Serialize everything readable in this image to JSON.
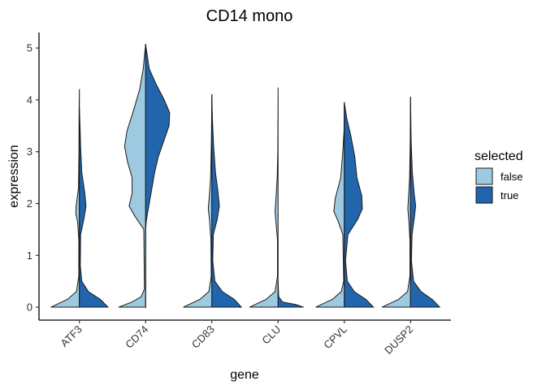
{
  "chart_data": {
    "type": "split-violin",
    "title": "CD14 mono",
    "xlabel": "gene",
    "ylabel": "expression",
    "ylim": [
      -0.25,
      5.3
    ],
    "yticks": [
      0,
      1,
      2,
      3,
      4,
      5
    ],
    "categories": [
      "ATF3",
      "CD74",
      "CD83",
      "CLU",
      "CPVL",
      "DUSP2"
    ],
    "legend": {
      "title": "selected",
      "placement": "right",
      "entries": [
        {
          "label": "false",
          "color": "#9ecae1"
        },
        {
          "label": "true",
          "color": "#2166ac"
        }
      ]
    },
    "series": [
      {
        "name": "false",
        "color": "#9ecae1",
        "side": "left",
        "profiles": [
          [
            [
              0,
              0.95
            ],
            [
              0.15,
              0.4
            ],
            [
              0.3,
              0.1
            ],
            [
              0.6,
              0.02
            ],
            [
              1.3,
              0.02
            ],
            [
              1.65,
              0.06
            ],
            [
              1.8,
              0.12
            ],
            [
              1.95,
              0.11
            ],
            [
              2.3,
              0.03
            ],
            [
              3.0,
              0.015
            ],
            [
              3.8,
              0.01
            ],
            [
              4.2,
              0
            ]
          ],
          [
            [
              0,
              0.9
            ],
            [
              0.1,
              0.45
            ],
            [
              0.2,
              0.15
            ],
            [
              0.35,
              0.04
            ],
            [
              1.5,
              0.06
            ],
            [
              1.75,
              0.35
            ],
            [
              1.95,
              0.55
            ],
            [
              2.2,
              0.45
            ],
            [
              2.5,
              0.45
            ],
            [
              2.8,
              0.6
            ],
            [
              3.1,
              0.7
            ],
            [
              3.4,
              0.62
            ],
            [
              3.8,
              0.4
            ],
            [
              4.2,
              0.2
            ],
            [
              4.6,
              0.08
            ],
            [
              5.07,
              0
            ]
          ],
          [
            [
              0,
              0.95
            ],
            [
              0.15,
              0.4
            ],
            [
              0.3,
              0.1
            ],
            [
              0.6,
              0.02
            ],
            [
              1.3,
              0.03
            ],
            [
              1.7,
              0.08
            ],
            [
              1.9,
              0.12
            ],
            [
              2.1,
              0.09
            ],
            [
              2.5,
              0.04
            ],
            [
              3.2,
              0.015
            ],
            [
              4.1,
              0
            ]
          ],
          [
            [
              0,
              0.95
            ],
            [
              0.15,
              0.4
            ],
            [
              0.3,
              0.1
            ],
            [
              0.6,
              0.02
            ],
            [
              1.3,
              0.02
            ],
            [
              1.7,
              0.08
            ],
            [
              1.85,
              0.1
            ],
            [
              2.1,
              0.07
            ],
            [
              2.5,
              0.03
            ],
            [
              3.0,
              0.01
            ],
            [
              4.23,
              0
            ]
          ],
          [
            [
              0,
              0.95
            ],
            [
              0.15,
              0.4
            ],
            [
              0.3,
              0.1
            ],
            [
              0.5,
              0.02
            ],
            [
              1.4,
              0.05
            ],
            [
              1.65,
              0.2
            ],
            [
              1.85,
              0.35
            ],
            [
              2.1,
              0.3
            ],
            [
              2.5,
              0.12
            ],
            [
              3.0,
              0.05
            ],
            [
              3.4,
              0.01
            ],
            [
              3.95,
              0
            ]
          ],
          [
            [
              0,
              0.95
            ],
            [
              0.15,
              0.4
            ],
            [
              0.3,
              0.1
            ],
            [
              0.6,
              0.02
            ],
            [
              1.3,
              0.02
            ],
            [
              1.7,
              0.06
            ],
            [
              1.9,
              0.09
            ],
            [
              2.1,
              0.07
            ],
            [
              2.5,
              0.03
            ],
            [
              3.2,
              0.01
            ],
            [
              4.05,
              0
            ]
          ]
        ]
      },
      {
        "name": "true",
        "color": "#2166ac",
        "side": "right",
        "profiles": [
          [
            [
              0,
              0.95
            ],
            [
              0.15,
              0.7
            ],
            [
              0.3,
              0.3
            ],
            [
              0.5,
              0.08
            ],
            [
              0.8,
              0.03
            ],
            [
              1.4,
              0.04
            ],
            [
              1.7,
              0.15
            ],
            [
              1.95,
              0.22
            ],
            [
              2.2,
              0.18
            ],
            [
              2.6,
              0.08
            ],
            [
              3.1,
              0.04
            ],
            [
              3.5,
              0.02
            ],
            [
              3.84,
              0
            ]
          ],
          [
            [
              0,
              0
            ],
            [
              1.5,
              0
            ],
            [
              1.65,
              0.02
            ],
            [
              1.8,
              0.06
            ],
            [
              2.2,
              0.18
            ],
            [
              2.6,
              0.3
            ],
            [
              2.9,
              0.42
            ],
            [
              3.2,
              0.6
            ],
            [
              3.5,
              0.78
            ],
            [
              3.75,
              0.8
            ],
            [
              4.0,
              0.62
            ],
            [
              4.3,
              0.35
            ],
            [
              4.6,
              0.12
            ],
            [
              5.07,
              0
            ]
          ],
          [
            [
              0,
              0.98
            ],
            [
              0.15,
              0.75
            ],
            [
              0.3,
              0.35
            ],
            [
              0.5,
              0.1
            ],
            [
              0.9,
              0.03
            ],
            [
              1.4,
              0.05
            ],
            [
              1.7,
              0.18
            ],
            [
              1.95,
              0.25
            ],
            [
              2.25,
              0.2
            ],
            [
              2.6,
              0.12
            ],
            [
              3.1,
              0.06
            ],
            [
              3.6,
              0.02
            ],
            [
              4.1,
              0
            ]
          ],
          [
            [
              0,
              0.85
            ],
            [
              0.05,
              0.6
            ],
            [
              0.1,
              0.15
            ],
            [
              0.2,
              0.02
            ],
            [
              0.5,
              0
            ]
          ],
          [
            [
              0,
              0.97
            ],
            [
              0.15,
              0.72
            ],
            [
              0.3,
              0.33
            ],
            [
              0.5,
              0.1
            ],
            [
              0.9,
              0.04
            ],
            [
              1.4,
              0.12
            ],
            [
              1.7,
              0.45
            ],
            [
              1.9,
              0.6
            ],
            [
              2.15,
              0.58
            ],
            [
              2.5,
              0.42
            ],
            [
              2.9,
              0.35
            ],
            [
              3.3,
              0.22
            ],
            [
              3.65,
              0.08
            ],
            [
              3.95,
              0
            ]
          ],
          [
            [
              0,
              0.97
            ],
            [
              0.15,
              0.72
            ],
            [
              0.3,
              0.35
            ],
            [
              0.5,
              0.1
            ],
            [
              0.9,
              0.03
            ],
            [
              1.4,
              0.05
            ],
            [
              1.7,
              0.12
            ],
            [
              1.95,
              0.17
            ],
            [
              2.2,
              0.12
            ],
            [
              2.6,
              0.06
            ],
            [
              3.2,
              0.02
            ],
            [
              4.05,
              0
            ]
          ]
        ]
      }
    ],
    "grid": false
  }
}
